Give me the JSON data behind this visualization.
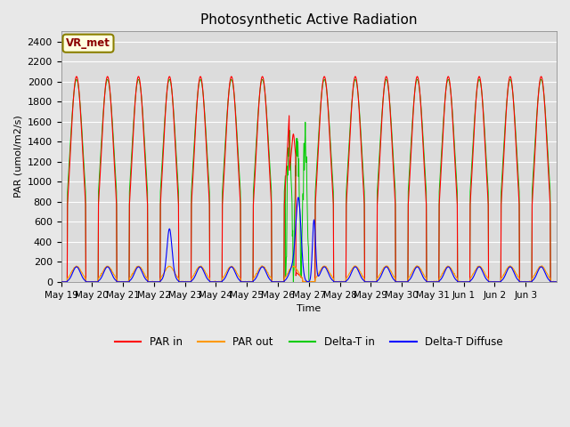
{
  "title": "Photosynthetic Active Radiation",
  "ylabel": "PAR (umol/m2/s)",
  "xlabel": "Time",
  "ylim": [
    0,
    2500
  ],
  "yticks": [
    0,
    200,
    400,
    600,
    800,
    1000,
    1200,
    1400,
    1600,
    1800,
    2000,
    2200,
    2400
  ],
  "background_color": "#e8e8e8",
  "plot_bg_color": "#dcdcdc",
  "colors": {
    "PAR_in": "#ff0000",
    "PAR_out": "#ff9900",
    "Delta_T_in": "#00cc00",
    "Delta_T_Diffuse": "#0000ff"
  },
  "legend_labels": [
    "PAR in",
    "PAR out",
    "Delta-T in",
    "Delta-T Diffuse"
  ],
  "annotation_text": "VR_met",
  "n_days": 16,
  "x_tick_labels": [
    "May 19",
    "May 20",
    "May 21",
    "May 22",
    "May 23",
    "May 24",
    "May 25",
    "May 26",
    "May 27",
    "May 28",
    "May 29",
    "May 30",
    "May 31",
    "Jun 1",
    "Jun 2",
    "Jun 3"
  ]
}
